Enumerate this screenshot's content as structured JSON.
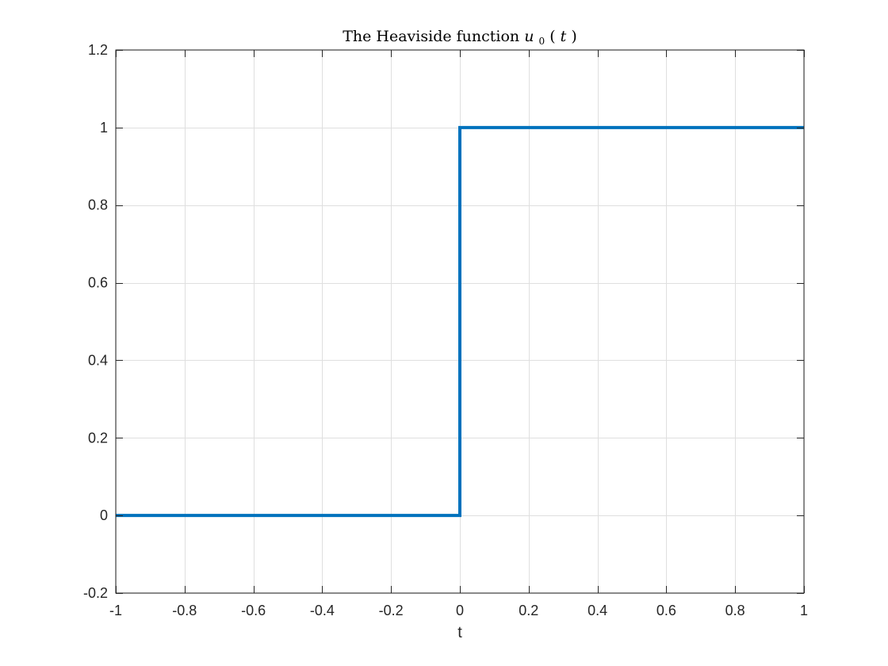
{
  "chart_data": {
    "type": "line",
    "title": {
      "text": "The Heaviside function",
      "math_symbol": "u",
      "math_subscript": "0",
      "math_open": "(",
      "math_arg": "t",
      "math_close": ")"
    },
    "xlabel": "t",
    "ylabel": "",
    "xlim": [
      -1,
      1
    ],
    "ylim": [
      -0.2,
      1.2
    ],
    "x_ticks": [
      -1,
      -0.8,
      -0.6,
      -0.4,
      -0.2,
      0,
      0.2,
      0.4,
      0.6,
      0.8,
      1
    ],
    "x_tick_labels": [
      "-1",
      "-0.8",
      "-0.6",
      "-0.4",
      "-0.2",
      "0",
      "0.2",
      "0.4",
      "0.6",
      "0.8",
      "1"
    ],
    "y_ticks": [
      -0.2,
      0,
      0.2,
      0.4,
      0.6,
      0.8,
      1,
      1.2
    ],
    "y_tick_labels": [
      "-0.2",
      "0",
      "0.2",
      "0.4",
      "0.6",
      "0.8",
      "1",
      "1.2"
    ],
    "grid": true,
    "series": [
      {
        "color": "#0072bd",
        "x": [
          -1,
          0,
          0,
          1
        ],
        "y": [
          0,
          0,
          1,
          1
        ]
      }
    ]
  }
}
